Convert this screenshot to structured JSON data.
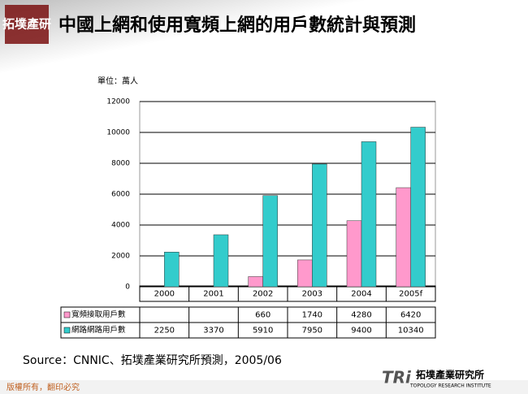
{
  "header": {
    "logo": "拓墣產研",
    "title": "中國上網和使用寬頻上網的用戶數統計與預測"
  },
  "chart_data": {
    "type": "bar",
    "y_label": "單位：萬人",
    "categories": [
      "2000",
      "2001",
      "2002",
      "2003",
      "2004",
      "2005f"
    ],
    "series": [
      {
        "name": "寬頻接取用戶數",
        "color": "#ff99cc",
        "values": [
          null,
          null,
          660,
          1740,
          4280,
          6420
        ]
      },
      {
        "name": "網路網路用戶數",
        "color": "#33cccc",
        "values": [
          2250,
          3370,
          5910,
          7950,
          9400,
          10340
        ]
      }
    ],
    "ylim": [
      0,
      12000
    ],
    "yticks": [
      0,
      2000,
      4000,
      6000,
      8000,
      10000,
      12000
    ],
    "grid": true
  },
  "source": "Source：CNNIC、拓墣產業研究所預測，2005/06",
  "footer": {
    "copyright": "版權所有，翻印必究",
    "brand": "TRi",
    "brand_name": "拓墣產業研究所",
    "brand_en": "TOPOLOGY RESEARCH INSTITUTE"
  }
}
